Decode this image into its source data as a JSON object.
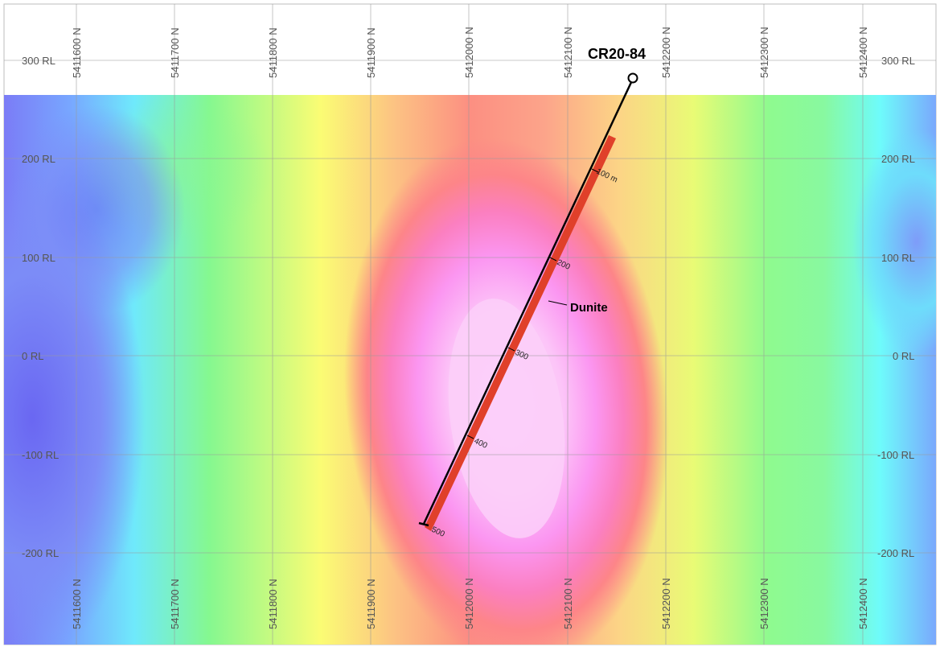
{
  "section": {
    "northings": [
      "5411600 N",
      "5411700 N",
      "5411800 N",
      "5411900 N",
      "5412000 N",
      "5412100 N",
      "5412200 N",
      "5412300 N",
      "5412400 N"
    ],
    "elevations": [
      "300 RL",
      "200 RL",
      "100 RL",
      "0 RL",
      "-100 RL",
      "-200 RL"
    ]
  },
  "drillhole": {
    "name": "CR20-84",
    "depth_labels": [
      "100 m",
      "200",
      "300",
      "400",
      "500"
    ],
    "lithology_label": "Dunite",
    "collar_symbol": "circle",
    "trace_color": "#000000",
    "interval_color": "#e0402a"
  },
  "legend_colors": {
    "low": "#6f6ff5",
    "mid_low": "#6cfcfc",
    "mid": "#8ff58f",
    "mid_high": "#fdfd73",
    "high": "#ff7f7f",
    "very_high": "#ff7ef0",
    "peak": "#fcd4fc"
  }
}
